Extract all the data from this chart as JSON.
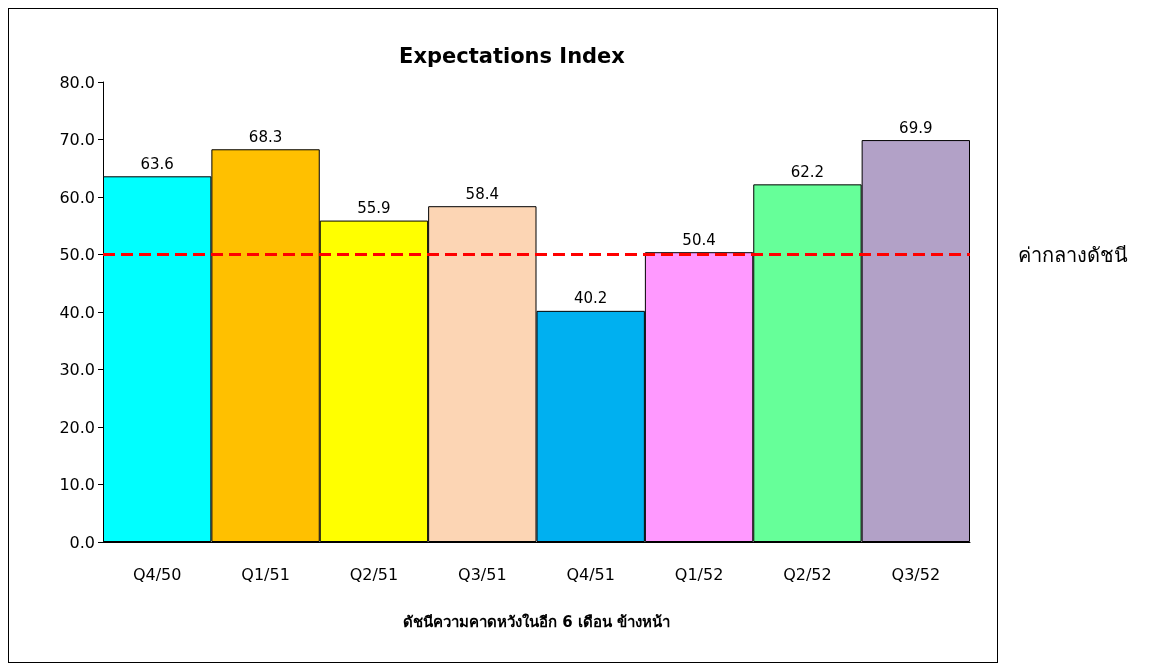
{
  "chart_data": {
    "type": "bar",
    "title": "Expectations Index",
    "xlabel": "ดัชนีความคาดหวังในอีก 6 เดือน ข้างหน้า",
    "categories": [
      "Q4/50",
      "Q1/51",
      "Q2/51",
      "Q3/51",
      "Q4/51",
      "Q1/52",
      "Q2/52",
      "Q3/52"
    ],
    "values": [
      63.6,
      68.3,
      55.9,
      58.4,
      40.2,
      50.4,
      62.2,
      69.9
    ],
    "colors": [
      "#00ffff",
      "#ffc000",
      "#ffff00",
      "#fcd5b4",
      "#00b0f0",
      "#ff99ff",
      "#66ff99",
      "#b2a1c7"
    ],
    "ylim": [
      0,
      80
    ],
    "yticks": [
      {
        "value": 0,
        "label": "0.0"
      },
      {
        "value": 10,
        "label": "10.0"
      },
      {
        "value": 20,
        "label": "20.0"
      },
      {
        "value": 30,
        "label": "30.0"
      },
      {
        "value": 40,
        "label": "40.0"
      },
      {
        "value": 50,
        "label": "50.0"
      },
      {
        "value": 60,
        "label": "60.0"
      },
      {
        "value": 70,
        "label": "70.0"
      },
      {
        "value": 80,
        "label": "80.0"
      }
    ],
    "grid": false,
    "data_labels": true,
    "ref_lines": [
      {
        "axis": "y",
        "value": 50,
        "label": "ค่ากลางดัชนี",
        "color": "#ff0000",
        "line_style": "dashed"
      }
    ]
  }
}
